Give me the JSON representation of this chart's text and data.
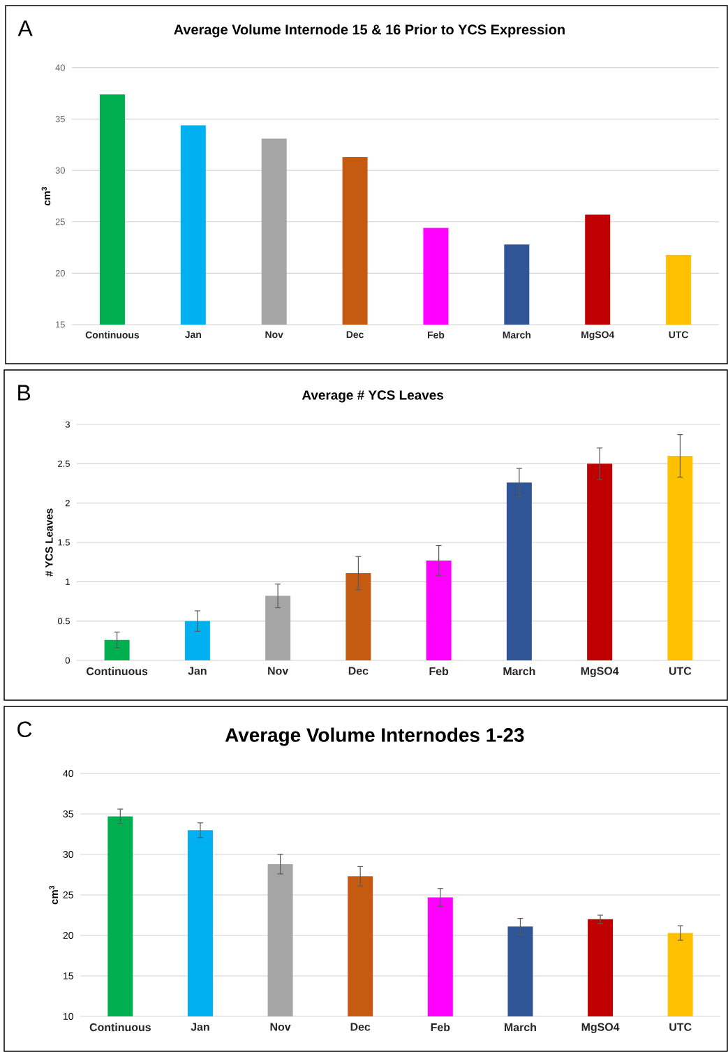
{
  "chart_data": [
    {
      "type": "bar",
      "title": "Average Volume Internode 15 & 16 Prior to YCS Expression",
      "ylabel": "cm$^{3}$",
      "annotations": [
        "A"
      ],
      "grid": "y",
      "categories": [
        "Continuous",
        "Jan",
        "Nov",
        "Dec",
        "Feb",
        "March",
        "MgSO4",
        "UTC"
      ],
      "values": [
        37.4,
        34.4,
        33.1,
        31.3,
        24.4,
        22.8,
        25.7,
        21.8
      ],
      "colors": [
        "#00b050",
        "#00b0f0",
        "#a5a5a5",
        "#c55a11",
        "#ff00ff",
        "#2f5597",
        "#c00000",
        "#ffc000"
      ],
      "ylim": [
        15,
        40
      ],
      "yticks": [
        15,
        20,
        25,
        30,
        35,
        40
      ]
    },
    {
      "type": "bar",
      "title": "Average # YCS Leaves",
      "ylabel": "# YCS Leaves",
      "annotations": [
        "B"
      ],
      "grid": "y",
      "categories": [
        "Continuous",
        "Jan",
        "Nov",
        "Dec",
        "Feb",
        "March",
        "MgSO4",
        "UTC"
      ],
      "values": [
        0.26,
        0.5,
        0.82,
        1.11,
        1.27,
        2.26,
        2.5,
        2.6
      ],
      "errors": [
        0.1,
        0.13,
        0.15,
        0.21,
        0.19,
        0.18,
        0.2,
        0.27
      ],
      "colors": [
        "#00b050",
        "#00b0f0",
        "#a5a5a5",
        "#c55a11",
        "#ff00ff",
        "#2f5597",
        "#c00000",
        "#ffc000"
      ],
      "ylim": [
        0,
        3
      ],
      "yticks": [
        0,
        0.5,
        1,
        1.5,
        2,
        2.5,
        3
      ]
    },
    {
      "type": "bar",
      "title": "Average Volume Internodes 1-23",
      "ylabel": "cm$^{3}$",
      "annotations": [
        "C"
      ],
      "grid": "y",
      "categories": [
        "Continuous",
        "Jan",
        "Nov",
        "Dec",
        "Feb",
        "March",
        "MgSO4",
        "UTC"
      ],
      "values": [
        34.7,
        33.0,
        28.8,
        27.3,
        24.7,
        21.1,
        22.0,
        20.3
      ],
      "errors": [
        0.9,
        0.9,
        1.2,
        1.2,
        1.1,
        1.0,
        0.5,
        0.9
      ],
      "colors": [
        "#00b050",
        "#00b0f0",
        "#a5a5a5",
        "#c55a11",
        "#ff00ff",
        "#2f5597",
        "#c00000",
        "#ffc000"
      ],
      "ylim": [
        10,
        40
      ],
      "yticks": [
        10,
        15,
        20,
        25,
        30,
        35,
        40
      ]
    }
  ]
}
